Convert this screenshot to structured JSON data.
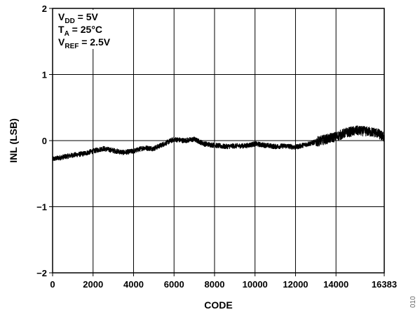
{
  "chart_data": {
    "type": "line",
    "xlabel": "CODE",
    "ylabel": "INL (LSB)",
    "xlim": [
      0,
      16383
    ],
    "ylim": [
      -2,
      2
    ],
    "x_ticks": [
      0,
      2000,
      4000,
      6000,
      8000,
      10000,
      12000,
      14000,
      16383
    ],
    "x_tick_labels": [
      "0",
      "2000",
      "4000",
      "6000",
      "8000",
      "10000",
      "12000",
      "14000",
      "16383"
    ],
    "y_ticks": [
      -2,
      -1,
      0,
      1,
      2
    ],
    "y_tick_labels": [
      "−2",
      "−1",
      "0",
      "1",
      "2"
    ],
    "grid": true,
    "legend": "none",
    "series": [
      {
        "color": "#000000",
        "x": [
          0,
          500,
          1000,
          1500,
          2000,
          2500,
          3000,
          3500,
          4000,
          4500,
          5000,
          5500,
          6000,
          6500,
          7000,
          7500,
          8000,
          8500,
          9000,
          9500,
          10000,
          10500,
          11000,
          11500,
          12000,
          12500,
          13000,
          13500,
          14000,
          14500,
          15000,
          15500,
          16000,
          16383
        ],
        "values": [
          -0.28,
          -0.25,
          -0.22,
          -0.2,
          -0.16,
          -0.12,
          -0.15,
          -0.18,
          -0.16,
          -0.11,
          -0.12,
          -0.05,
          0.02,
          0.0,
          0.02,
          -0.05,
          -0.07,
          -0.09,
          -0.08,
          -0.08,
          -0.05,
          -0.07,
          -0.09,
          -0.08,
          -0.1,
          -0.06,
          -0.02,
          0.02,
          0.06,
          0.12,
          0.15,
          0.14,
          0.12,
          0.05
        ]
      }
    ],
    "annotations": [
      {
        "main": "V",
        "sub": "DD",
        "rest": " = 5V"
      },
      {
        "main": "T",
        "sub": "A",
        "rest": " = 25°C"
      },
      {
        "main": "V",
        "sub": "REF",
        "rest": " = 2.5V"
      }
    ]
  },
  "figure_id": "010"
}
